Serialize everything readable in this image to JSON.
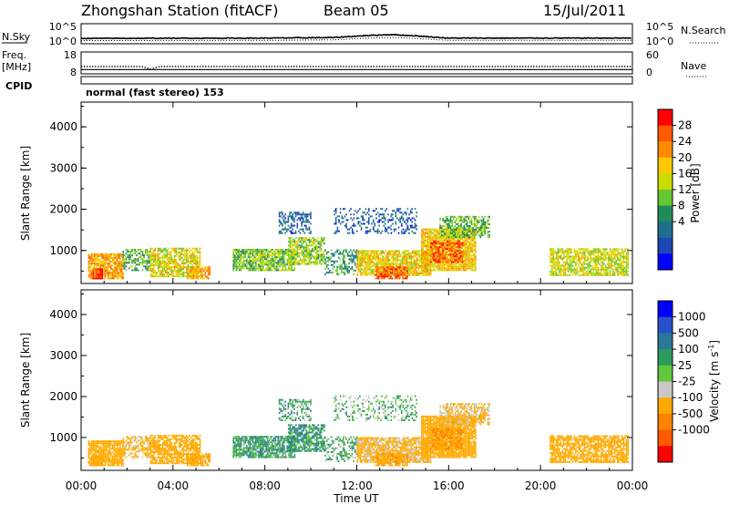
{
  "header": {
    "station": "Zhongshan Station (fitACF)",
    "beam": "Beam 05",
    "date": "15/Jul/2011"
  },
  "strip1": {
    "left_label": "N.Sky",
    "right_label": "N.Search",
    "left_ticks": [
      "10^5",
      "10^0"
    ],
    "right_ticks": [
      "10^5",
      "10^0"
    ]
  },
  "strip2": {
    "left_label_1": "Freq.",
    "left_label_2": "[MHz]",
    "right_label": "Nave",
    "left_ticks": [
      "18",
      "8"
    ],
    "right_ticks": [
      "60",
      "0"
    ]
  },
  "cpid": {
    "label": "CPID",
    "text": "normal (fast stereo) 153"
  },
  "axes": {
    "ylabel": "Slant Range [km]",
    "xlabel": "Time UT",
    "y_ticks": [
      "1000",
      "2000",
      "3000",
      "4000"
    ],
    "x_ticks": [
      "00:00",
      "04:00",
      "08:00",
      "12:00",
      "16:00",
      "20:00",
      "00:00"
    ]
  },
  "power_colorbar": {
    "label": "Power [dB]",
    "ticks": [
      "28",
      "24",
      "20",
      "16",
      "12",
      "8",
      "4"
    ],
    "colors": [
      "#ff0000",
      "#ff5a00",
      "#ff8c00",
      "#ffc800",
      "#c8dc00",
      "#64c832",
      "#228b5a",
      "#1e6e8c",
      "#1e46b4",
      "#0000ff"
    ]
  },
  "velocity_colorbar": {
    "label": "Velocity [m s",
    "label_sup": "-1",
    "label_end": "]",
    "ticks": [
      "1000",
      "500",
      "100",
      "25",
      "-25",
      "-100",
      "-500",
      "-1000"
    ],
    "colors": [
      "#0000ff",
      "#2850c8",
      "#287896",
      "#2d9b5a",
      "#5fc83c",
      "#c8c8c8",
      "#ffaa00",
      "#ff8200",
      "#ff5a00",
      "#ff0000"
    ]
  },
  "chart_data": {
    "type": "heatmap",
    "x_unit": "hours UT",
    "y_unit": "km",
    "xlim": [
      0,
      24
    ],
    "ylim": [
      200,
      4600
    ],
    "power_range_db": [
      0,
      30
    ],
    "velocity_range": [
      -1000,
      1000
    ],
    "scatter_regions": [
      {
        "t0": 0.3,
        "t1": 1.8,
        "r0": 300,
        "r1": 900,
        "power": 22,
        "velocity": -200,
        "density": 0.9
      },
      {
        "t0": 0.5,
        "t1": 0.9,
        "r0": 300,
        "r1": 550,
        "power": 29,
        "velocity": -300,
        "density": 1.0
      },
      {
        "t0": 1.8,
        "t1": 3.0,
        "r0": 500,
        "r1": 1000,
        "power": 12,
        "velocity": -150,
        "density": 0.55
      },
      {
        "t0": 3.0,
        "t1": 5.2,
        "r0": 350,
        "r1": 1050,
        "power": 18,
        "velocity": -250,
        "density": 0.8
      },
      {
        "t0": 4.6,
        "t1": 5.6,
        "r0": 300,
        "r1": 600,
        "power": 22,
        "velocity": -350,
        "density": 0.7
      },
      {
        "t0": 6.6,
        "t1": 9.3,
        "r0": 500,
        "r1": 1000,
        "power": 14,
        "velocity": 60,
        "density": 0.85
      },
      {
        "t0": 8.6,
        "t1": 10.0,
        "r0": 1400,
        "r1": 1900,
        "power": 6,
        "velocity": 40,
        "density": 0.45
      },
      {
        "t0": 9.0,
        "t1": 10.6,
        "r0": 650,
        "r1": 1300,
        "power": 15,
        "velocity": 80,
        "density": 0.75
      },
      {
        "t0": 10.6,
        "t1": 12.0,
        "r0": 400,
        "r1": 1000,
        "power": 10,
        "velocity": 30,
        "density": 0.45
      },
      {
        "t0": 11.0,
        "t1": 14.6,
        "r0": 1400,
        "r1": 2000,
        "power": 5,
        "velocity": 10,
        "density": 0.3
      },
      {
        "t0": 12.0,
        "t1": 15.2,
        "r0": 380,
        "r1": 1000,
        "power": 19,
        "velocity": -150,
        "density": 0.85
      },
      {
        "t0": 12.8,
        "t1": 14.2,
        "r0": 300,
        "r1": 600,
        "power": 26,
        "velocity": -400,
        "density": 0.8
      },
      {
        "t0": 14.8,
        "t1": 17.2,
        "r0": 500,
        "r1": 1500,
        "power": 20,
        "velocity": -300,
        "density": 0.9
      },
      {
        "t0": 15.2,
        "t1": 16.6,
        "r0": 700,
        "r1": 1200,
        "power": 26,
        "velocity": -500,
        "density": 0.75
      },
      {
        "t0": 15.6,
        "t1": 17.8,
        "r0": 1300,
        "r1": 1800,
        "power": 13,
        "velocity": -120,
        "density": 0.65
      },
      {
        "t0": 20.4,
        "t1": 23.8,
        "r0": 380,
        "r1": 1050,
        "power": 17,
        "velocity": -250,
        "density": 0.8
      }
    ],
    "n_sky_trace": {
      "hours": [
        0,
        8,
        11,
        12.5,
        13.5,
        14.5,
        16,
        24
      ],
      "log10": [
        0.9,
        1.0,
        1.2,
        1.9,
        2.2,
        1.8,
        1.0,
        1.0
      ]
    },
    "freq_trace_mhz": {
      "hours": [
        0,
        2.6,
        3.0,
        3.4,
        24
      ],
      "values": [
        11.5,
        11.5,
        10.2,
        11.5,
        11.5
      ]
    },
    "nave_trace": {
      "hours": [
        0,
        24
      ],
      "values": [
        10,
        10
      ]
    }
  }
}
